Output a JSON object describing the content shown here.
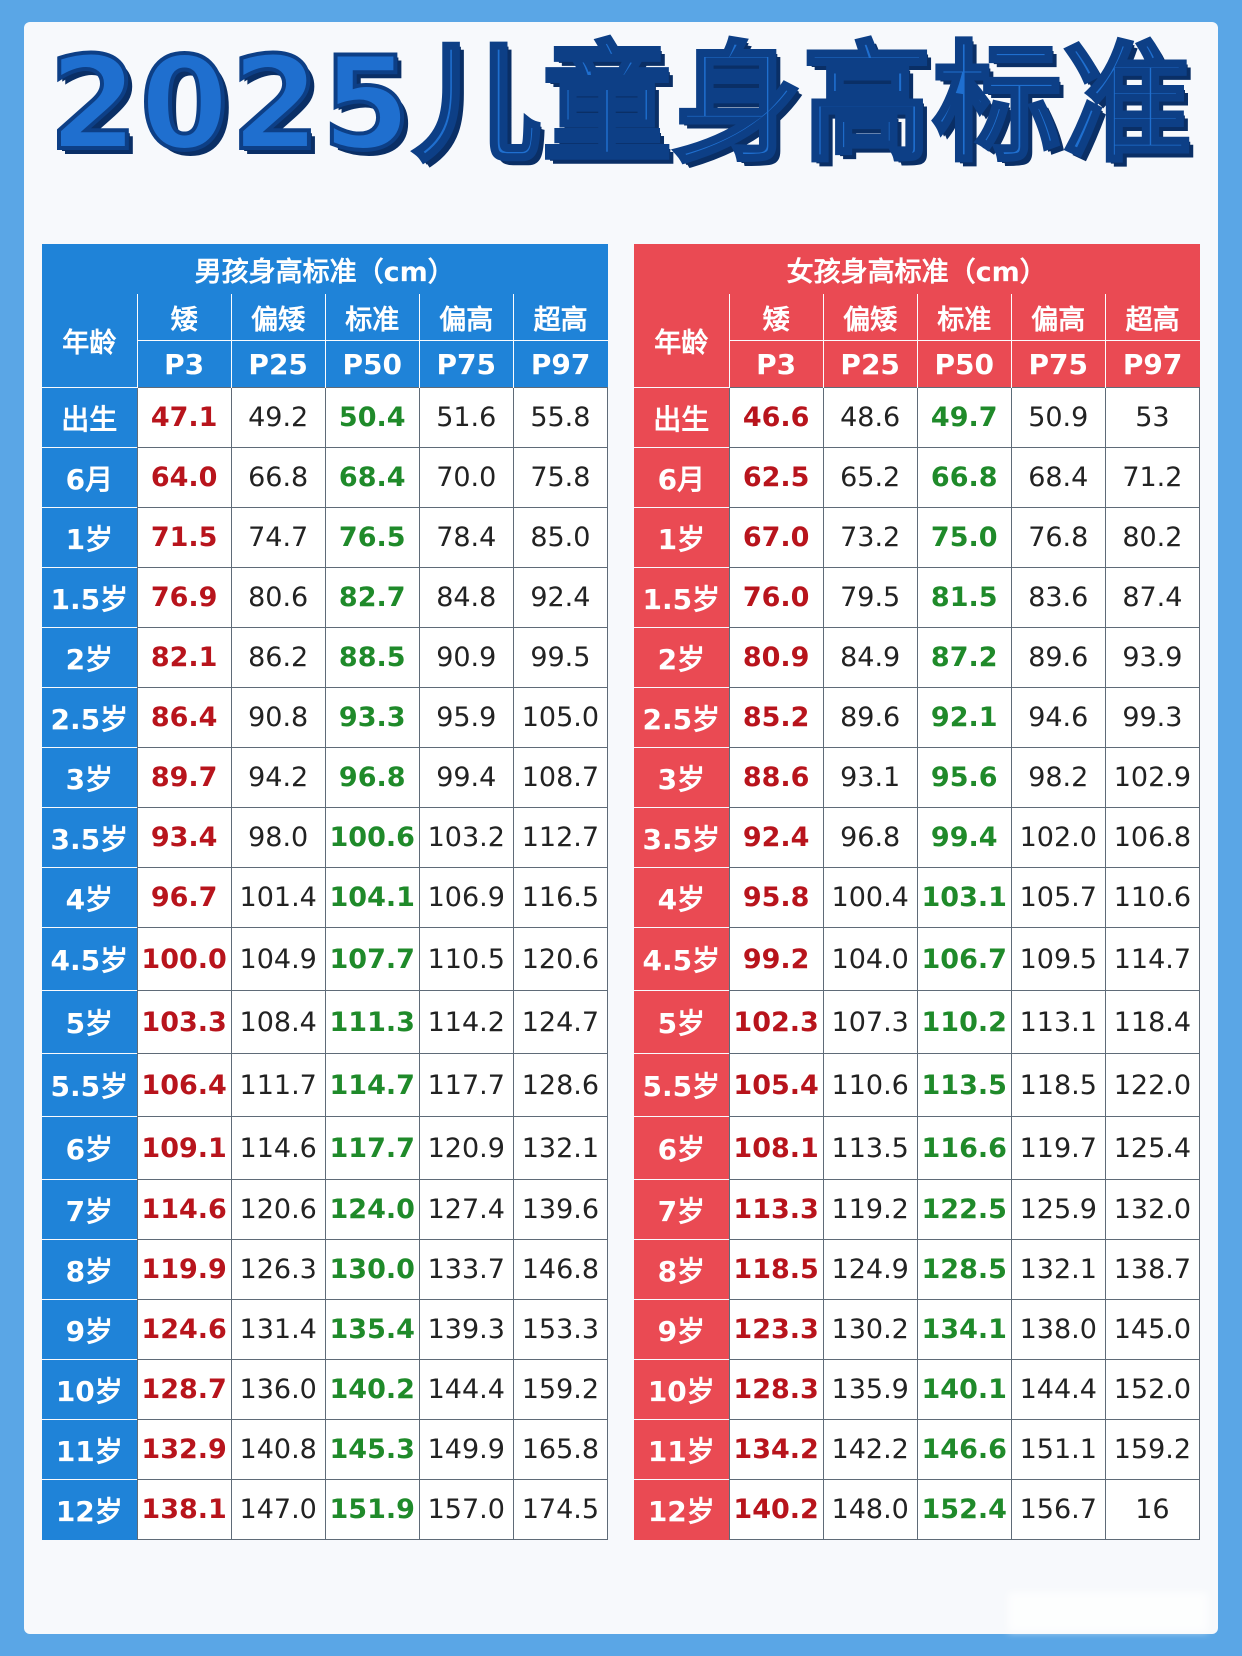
{
  "title": "2025儿童身高标准",
  "columns": {
    "age": "年龄",
    "labels": [
      "矮",
      "偏矮",
      "标准",
      "偏高",
      "超高"
    ],
    "percentiles": [
      "P3",
      "P25",
      "P50",
      "P75",
      "P97"
    ]
  },
  "boys": {
    "caption": "男孩身高标准（cm）",
    "rows": [
      [
        "出生",
        "47.1",
        "49.2",
        "50.4",
        "51.6",
        "55.8"
      ],
      [
        "6月",
        "64.0",
        "66.8",
        "68.4",
        "70.0",
        "75.8"
      ],
      [
        "1岁",
        "71.5",
        "74.7",
        "76.5",
        "78.4",
        "85.0"
      ],
      [
        "1.5岁",
        "76.9",
        "80.6",
        "82.7",
        "84.8",
        "92.4"
      ],
      [
        "2岁",
        "82.1",
        "86.2",
        "88.5",
        "90.9",
        "99.5"
      ],
      [
        "2.5岁",
        "86.4",
        "90.8",
        "93.3",
        "95.9",
        "105.0"
      ],
      [
        "3岁",
        "89.7",
        "94.2",
        "96.8",
        "99.4",
        "108.7"
      ],
      [
        "3.5岁",
        "93.4",
        "98.0",
        "100.6",
        "103.2",
        "112.7"
      ],
      [
        "4岁",
        "96.7",
        "101.4",
        "104.1",
        "106.9",
        "116.5"
      ],
      [
        "4.5岁",
        "100.0",
        "104.9",
        "107.7",
        "110.5",
        "120.6"
      ],
      [
        "5岁",
        "103.3",
        "108.4",
        "111.3",
        "114.2",
        "124.7"
      ],
      [
        "5.5岁",
        "106.4",
        "111.7",
        "114.7",
        "117.7",
        "128.6"
      ],
      [
        "6岁",
        "109.1",
        "114.6",
        "117.7",
        "120.9",
        "132.1"
      ],
      [
        "7岁",
        "114.6",
        "120.6",
        "124.0",
        "127.4",
        "139.6"
      ],
      [
        "8岁",
        "119.9",
        "126.3",
        "130.0",
        "133.7",
        "146.8"
      ],
      [
        "9岁",
        "124.6",
        "131.4",
        "135.4",
        "139.3",
        "153.3"
      ],
      [
        "10岁",
        "128.7",
        "136.0",
        "140.2",
        "144.4",
        "159.2"
      ],
      [
        "11岁",
        "132.9",
        "140.8",
        "145.3",
        "149.9",
        "165.8"
      ],
      [
        "12岁",
        "138.1",
        "147.0",
        "151.9",
        "157.0",
        "174.5"
      ]
    ]
  },
  "girls": {
    "caption": "女孩身高标准（cm）",
    "rows": [
      [
        "出生",
        "46.6",
        "48.6",
        "49.7",
        "50.9",
        "53"
      ],
      [
        "6月",
        "62.5",
        "65.2",
        "66.8",
        "68.4",
        "71.2"
      ],
      [
        "1岁",
        "67.0",
        "73.2",
        "75.0",
        "76.8",
        "80.2"
      ],
      [
        "1.5岁",
        "76.0",
        "79.5",
        "81.5",
        "83.6",
        "87.4"
      ],
      [
        "2岁",
        "80.9",
        "84.9",
        "87.2",
        "89.6",
        "93.9"
      ],
      [
        "2.5岁",
        "85.2",
        "89.6",
        "92.1",
        "94.6",
        "99.3"
      ],
      [
        "3岁",
        "88.6",
        "93.1",
        "95.6",
        "98.2",
        "102.9"
      ],
      [
        "3.5岁",
        "92.4",
        "96.8",
        "99.4",
        "102.0",
        "106.8"
      ],
      [
        "4岁",
        "95.8",
        "100.4",
        "103.1",
        "105.7",
        "110.6"
      ],
      [
        "4.5岁",
        "99.2",
        "104.0",
        "106.7",
        "109.5",
        "114.7"
      ],
      [
        "5岁",
        "102.3",
        "107.3",
        "110.2",
        "113.1",
        "118.4"
      ],
      [
        "5.5岁",
        "105.4",
        "110.6",
        "113.5",
        "118.5",
        "122.0"
      ],
      [
        "6岁",
        "108.1",
        "113.5",
        "116.6",
        "119.7",
        "125.4"
      ],
      [
        "7岁",
        "113.3",
        "119.2",
        "122.5",
        "125.9",
        "132.0"
      ],
      [
        "8岁",
        "118.5",
        "124.9",
        "128.5",
        "132.1",
        "138.7"
      ],
      [
        "9岁",
        "123.3",
        "130.2",
        "134.1",
        "138.0",
        "145.0"
      ],
      [
        "10岁",
        "128.3",
        "135.9",
        "140.1",
        "144.4",
        "152.0"
      ],
      [
        "11岁",
        "134.2",
        "142.2",
        "146.6",
        "151.1",
        "159.2"
      ],
      [
        "12岁",
        "140.2",
        "148.0",
        "152.4",
        "156.7",
        "16"
      ]
    ]
  },
  "colors": {
    "boys_accent": "#1f83d8",
    "girls_accent": "#ea4a53",
    "short_value": "#b8141c",
    "standard_value": "#1f8a2a",
    "title": "#1f6fcf"
  }
}
